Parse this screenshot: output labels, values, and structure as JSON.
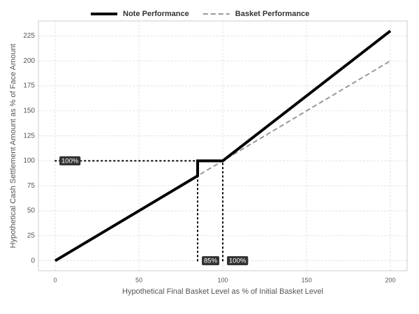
{
  "chart_data": {
    "type": "line",
    "x_label": "Hypothetical Final Basket Level as % of Initial Basket Level",
    "y_label": "Hypothetical Cash Settlement Amount as % of Face Amount",
    "xlim": [
      -10,
      210
    ],
    "ylim": [
      -10,
      240
    ],
    "xticks": [
      0,
      50,
      100,
      150,
      200
    ],
    "yticks": [
      0,
      25,
      50,
      75,
      100,
      125,
      150,
      175,
      200,
      225
    ],
    "grid": true,
    "legend": "top",
    "series": [
      {
        "name": "Note Performance",
        "color": "#000000",
        "dashed": false,
        "x": [
          0,
          85,
          85,
          100,
          200
        ],
        "values": [
          0,
          85,
          100,
          100,
          230
        ]
      },
      {
        "name": "Basket Performance",
        "color": "#999999",
        "dashed": true,
        "x": [
          0,
          200
        ],
        "values": [
          0,
          200
        ]
      }
    ],
    "reference_lines": [
      {
        "x": [
          0,
          100
        ],
        "y": [
          100,
          100
        ]
      },
      {
        "x": [
          85,
          85
        ],
        "y": [
          0,
          100
        ]
      },
      {
        "x": [
          100,
          100
        ],
        "y": [
          0,
          100
        ]
      }
    ],
    "annotations": [
      {
        "text": "100%",
        "x": 0,
        "y": 100
      },
      {
        "text": "85%",
        "x": 85,
        "y": 0
      },
      {
        "text": "100%",
        "x": 100,
        "y": 0
      }
    ]
  }
}
